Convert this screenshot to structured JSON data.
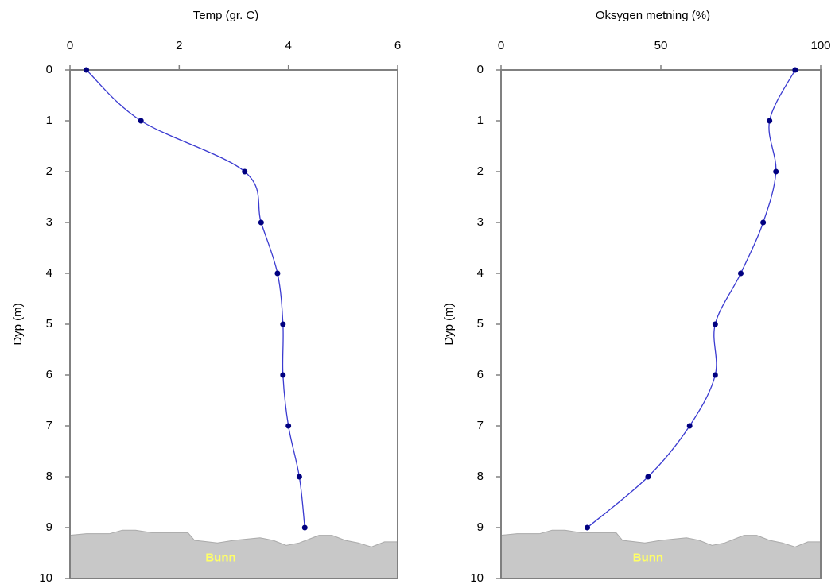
{
  "chart_data": [
    {
      "type": "line",
      "title": "Temp (gr. C)",
      "y_label": "Dyp (m)",
      "annotation": "Bunn",
      "y": [
        0,
        1,
        2,
        3,
        4,
        5,
        6,
        7,
        8,
        9
      ],
      "values": [
        0.3,
        1.3,
        3.2,
        3.5,
        3.8,
        3.9,
        3.9,
        4.0,
        4.2,
        4.3
      ],
      "color": "#000080",
      "line_color": "#3a3ad0",
      "xlim": [
        0,
        6
      ],
      "xticks": [
        0,
        2,
        4,
        6
      ],
      "ylim": [
        0,
        10
      ],
      "yticks": [
        0,
        1,
        2,
        3,
        4,
        5,
        6,
        7,
        8,
        9,
        10
      ],
      "y_reversed": true
    },
    {
      "type": "line",
      "title": "Oksygen metning (%)",
      "y_label": "Dyp (m)",
      "annotation": "Bunn",
      "y": [
        0,
        1,
        2,
        3,
        4,
        5,
        6,
        7,
        8,
        9
      ],
      "values": [
        92,
        84,
        86,
        82,
        75,
        67,
        67,
        59,
        46,
        27
      ],
      "color": "#000080",
      "line_color": "#3a3ad0",
      "xlim": [
        0,
        100
      ],
      "xticks": [
        0,
        50,
        100
      ],
      "ylim": [
        0,
        10
      ],
      "yticks": [
        0,
        1,
        2,
        3,
        4,
        5,
        6,
        7,
        8,
        9,
        10
      ],
      "y_reversed": true
    }
  ]
}
